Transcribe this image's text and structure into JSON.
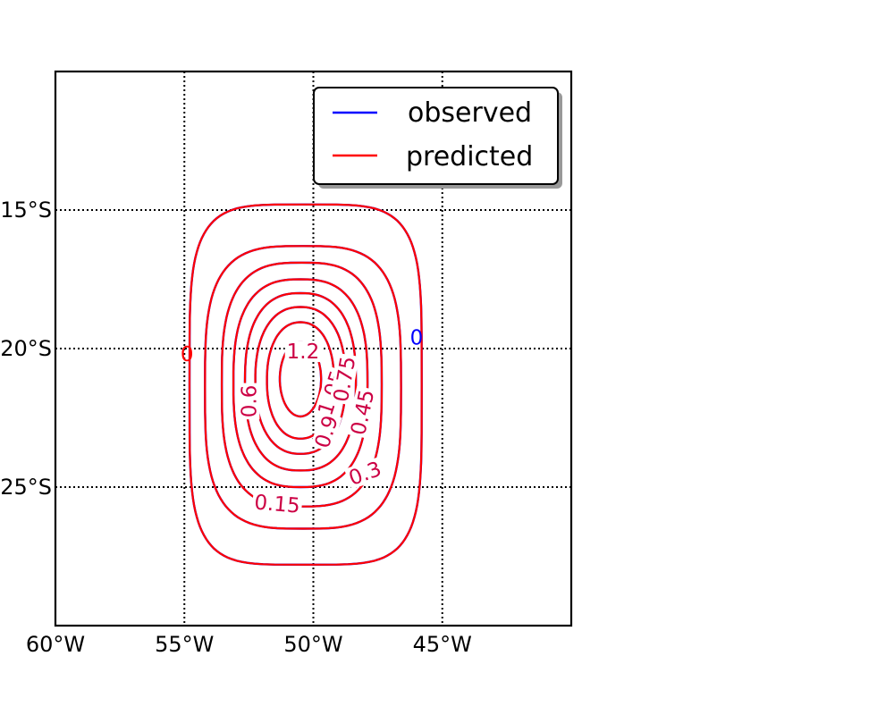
{
  "chart_data": {
    "type": "contour",
    "map_projection": "lat-lon",
    "xlim": [
      -60,
      -40
    ],
    "ylim": [
      -30,
      -10
    ],
    "x_ticks": [
      {
        "value": -60,
        "label": "60°W"
      },
      {
        "value": -55,
        "label": "55°W"
      },
      {
        "value": -50,
        "label": "50°W"
      },
      {
        "value": -45,
        "label": "45°W"
      }
    ],
    "y_ticks": [
      {
        "value": -15,
        "label": "15°S"
      },
      {
        "value": -20,
        "label": "20°S"
      },
      {
        "value": -25,
        "label": "25°S"
      }
    ],
    "grid": true,
    "legend": {
      "placement": "top-right",
      "entries": [
        {
          "label": "observed",
          "color": "#0000ff"
        },
        {
          "label": "predicted",
          "color": "#ff0000"
        }
      ]
    },
    "contour_center": {
      "lon": -50.5,
      "lat": -21.2
    },
    "series": [
      {
        "name": "observed",
        "color": "#0000ff",
        "levels": [
          {
            "level": 0.15,
            "rx": 4.5,
            "ry": 6.5,
            "lon": -50.3,
            "lat": -21.3,
            "p": 4.5
          },
          {
            "level": 0.3,
            "rx": 3.8,
            "ry": 5.1,
            "lon": -50.4,
            "lat": -21.4,
            "p": 3.4
          },
          {
            "level": 0.45,
            "rx": 3.1,
            "ry": 4.4,
            "lon": -50.45,
            "lat": -21.3,
            "p": 3.0
          },
          {
            "level": 0.6,
            "rx": 2.6,
            "ry": 3.75,
            "lon": -50.5,
            "lat": -21.25,
            "p": 2.7
          },
          {
            "level": 0.75,
            "rx": 2.15,
            "ry": 3.2,
            "lon": -50.5,
            "lat": -21.2,
            "p": 2.5
          },
          {
            "level": 0.9,
            "rx": 1.75,
            "ry": 2.65,
            "lon": -50.5,
            "lat": -21.15,
            "p": 2.3
          },
          {
            "level": 1.05,
            "rx": 1.3,
            "ry": 2.1,
            "lon": -50.5,
            "lat": -21.15,
            "p": 2.2
          },
          {
            "level": 1.2,
            "rx": 0.8,
            "ry": 1.35,
            "lon": -50.5,
            "lat": -21.1,
            "p": 2.0
          }
        ]
      },
      {
        "name": "predicted",
        "color": "#ff0000",
        "levels": [
          {
            "level": 0.15,
            "rx": 4.5,
            "ry": 6.5,
            "lon": -50.3,
            "lat": -21.3,
            "p": 4.5
          },
          {
            "level": 0.3,
            "rx": 3.8,
            "ry": 5.1,
            "lon": -50.4,
            "lat": -21.4,
            "p": 3.4
          },
          {
            "level": 0.45,
            "rx": 3.1,
            "ry": 4.4,
            "lon": -50.45,
            "lat": -21.3,
            "p": 3.0
          },
          {
            "level": 0.6,
            "rx": 2.6,
            "ry": 3.75,
            "lon": -50.5,
            "lat": -21.25,
            "p": 2.7
          },
          {
            "level": 0.75,
            "rx": 2.15,
            "ry": 3.2,
            "lon": -50.5,
            "lat": -21.2,
            "p": 2.5
          },
          {
            "level": 0.9,
            "rx": 1.75,
            "ry": 2.65,
            "lon": -50.5,
            "lat": -21.15,
            "p": 2.3
          },
          {
            "level": 1.05,
            "rx": 1.3,
            "ry": 2.1,
            "lon": -50.5,
            "lat": -21.15,
            "p": 2.2
          },
          {
            "level": 1.2,
            "rx": 0.8,
            "ry": 1.35,
            "lon": -50.5,
            "lat": -21.1,
            "p": 2.0
          }
        ]
      }
    ],
    "zero_contours": [
      {
        "series": "observed",
        "label": "0",
        "color": "#0000ff",
        "lon": -46.0,
        "lat": -19.6
      },
      {
        "series": "predicted",
        "label": "0",
        "color": "#ff0000",
        "lon": -54.9,
        "lat": -20.2
      }
    ],
    "contour_labels": [
      {
        "text": "1.2",
        "lon": -50.4,
        "lat": -20.1,
        "rotate": 0,
        "color": "#cc0044"
      },
      {
        "text": "0.6",
        "lon": -52.5,
        "lat": -21.9,
        "rotate": -90,
        "color": "#cc0044"
      },
      {
        "text": "1.05",
        "lon": -49.3,
        "lat": -21.6,
        "rotate": -72,
        "color": "#cc0044"
      },
      {
        "text": "0.75",
        "lon": -48.8,
        "lat": -21.1,
        "rotate": -80,
        "color": "#cc0044"
      },
      {
        "text": "0.9",
        "lon": -49.5,
        "lat": -23.0,
        "rotate": -72,
        "color": "#cc0044"
      },
      {
        "text": "0.45",
        "lon": -48.1,
        "lat": -22.3,
        "rotate": -78,
        "color": "#cc0044"
      },
      {
        "text": "0.3",
        "lon": -48.0,
        "lat": -24.5,
        "rotate": -20,
        "color": "#cc0044"
      },
      {
        "text": "0.15",
        "lon": -51.4,
        "lat": -25.6,
        "rotate": 5,
        "color": "#cc0044"
      }
    ]
  }
}
